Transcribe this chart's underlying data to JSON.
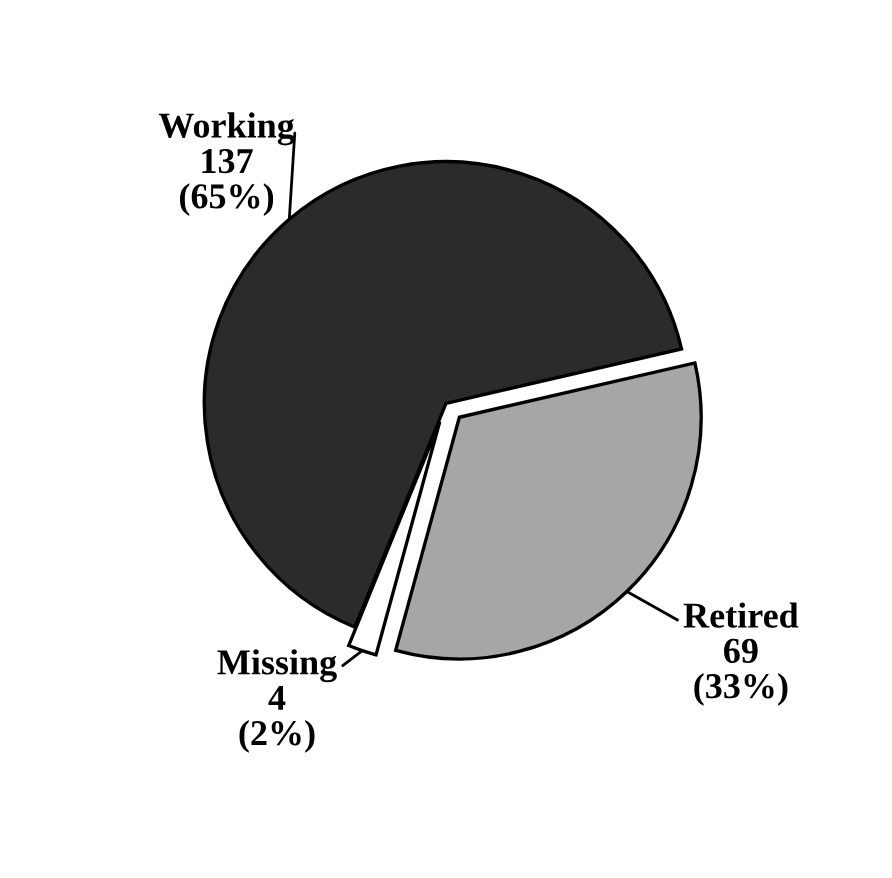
{
  "chart_data": {
    "type": "pie",
    "categories": [
      "Working",
      "Missing",
      "Retired"
    ],
    "values": [
      137,
      4,
      69
    ],
    "value_labels": [
      "137\n(65%)",
      "4\n(2%)",
      "69\n(33%)"
    ],
    "colors": [
      "#2b2b2b",
      "#ffffff",
      "#a6a6a6"
    ],
    "legend": false
  }
}
